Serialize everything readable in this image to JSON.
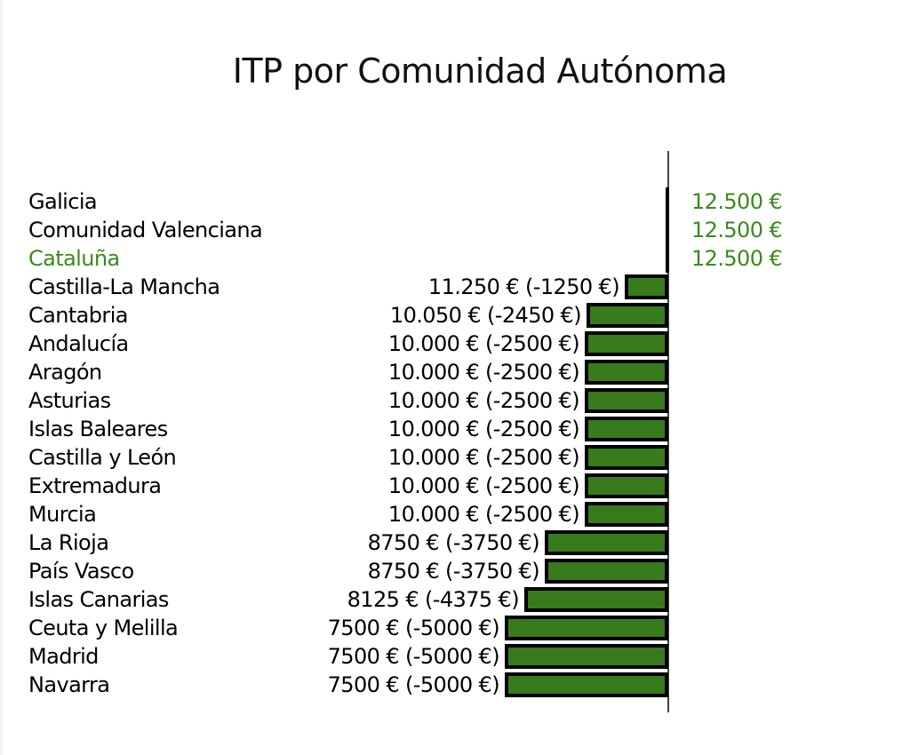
{
  "title": "ITP por Comunidad Autónoma",
  "colors": {
    "bar": "#377b1c",
    "highlight": "#3a8a1e",
    "axis": "#444444"
  },
  "chart_data": {
    "type": "bar",
    "orientation": "horizontal",
    "title": "ITP por Comunidad Autónoma",
    "xlabel": "",
    "ylabel": "",
    "baseline": 12500,
    "categories": [
      "Galicia",
      "Comunidad Valenciana",
      "Cataluña",
      "Castilla-La Mancha",
      "Cantabria",
      "Andalucía",
      "Aragón",
      "Asturias",
      "Islas Baleares",
      "Castilla y León",
      "Extremadura",
      "Murcia",
      "La Rioja",
      "País Vasco",
      "Islas Canarias",
      "Ceuta y Melilla",
      "Madrid",
      "Navarra"
    ],
    "values": [
      12500,
      12500,
      12500,
      11250,
      10050,
      10000,
      10000,
      10000,
      10000,
      10000,
      10000,
      10000,
      8750,
      8750,
      8125,
      7500,
      7500,
      7500
    ],
    "differences": [
      0,
      0,
      0,
      -1250,
      -2450,
      -2500,
      -2500,
      -2500,
      -2500,
      -2500,
      -2500,
      -2500,
      -3750,
      -3750,
      -4375,
      -5000,
      -5000,
      -5000
    ],
    "highlighted": "Cataluña",
    "grid": false,
    "legend": null
  },
  "rows": [
    {
      "name": "Galicia",
      "value_label": "12.500 €",
      "side": "right",
      "value": 12500
    },
    {
      "name": "Comunidad Valenciana",
      "value_label": "12.500 €",
      "side": "right",
      "value": 12500
    },
    {
      "name": "Cataluña",
      "value_label": "12.500 €",
      "side": "right",
      "value": 12500,
      "highlight": true
    },
    {
      "name": "Castilla-La Mancha",
      "value_label": "11.250 € (-1250 €)",
      "side": "left",
      "value": 11250
    },
    {
      "name": "Cantabria",
      "value_label": "10.050 € (-2450 €)",
      "side": "left",
      "value": 10050
    },
    {
      "name": "Andalucía",
      "value_label": "10.000 € (-2500 €)",
      "side": "left",
      "value": 10000
    },
    {
      "name": "Aragón",
      "value_label": "10.000 € (-2500 €)",
      "side": "left",
      "value": 10000
    },
    {
      "name": "Asturias",
      "value_label": "10.000 € (-2500 €)",
      "side": "left",
      "value": 10000
    },
    {
      "name": "Islas Baleares",
      "value_label": "10.000 € (-2500 €)",
      "side": "left",
      "value": 10000
    },
    {
      "name": "Castilla y León",
      "value_label": "10.000 € (-2500 €)",
      "side": "left",
      "value": 10000
    },
    {
      "name": "Extremadura",
      "value_label": "10.000 € (-2500 €)",
      "side": "left",
      "value": 10000
    },
    {
      "name": "Murcia",
      "value_label": "10.000 € (-2500 €)",
      "side": "left",
      "value": 10000
    },
    {
      "name": "La Rioja",
      "value_label": "8750 € (-3750 €)",
      "side": "left",
      "value": 8750
    },
    {
      "name": "País Vasco",
      "value_label": "8750 € (-3750 €)",
      "side": "left",
      "value": 8750
    },
    {
      "name": "Islas Canarias",
      "value_label": "8125 € (-4375 €)",
      "side": "left",
      "value": 8125
    },
    {
      "name": "Ceuta y Melilla",
      "value_label": "7500 € (-5000 €)",
      "side": "left",
      "value": 7500
    },
    {
      "name": "Madrid",
      "value_label": "7500 € (-5000 €)",
      "side": "left",
      "value": 7500
    },
    {
      "name": "Navarra",
      "value_label": "7500 € (-5000 €)",
      "side": "left",
      "value": 7500
    }
  ]
}
